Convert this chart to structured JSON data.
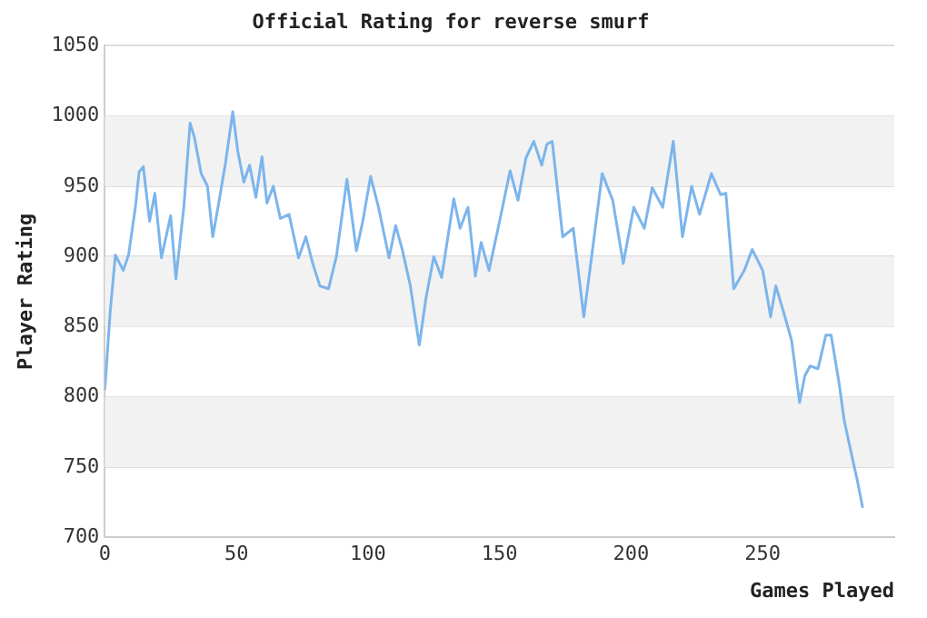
{
  "chart_data": {
    "type": "line",
    "title": "Official Rating for reverse smurf",
    "xlabel": "Games Played",
    "ylabel": "Player Rating",
    "x": [
      0,
      2,
      4,
      7,
      9,
      11.6,
      13,
      14.6,
      17,
      19,
      21.5,
      25,
      27,
      30,
      32.4,
      34,
      36.6,
      39,
      41,
      43,
      45.8,
      48.6,
      50.5,
      52.8,
      55,
      57.4,
      59.7,
      61.6,
      64,
      66.7,
      70,
      73.6,
      76.4,
      79,
      81.7,
      85,
      88,
      92,
      95.6,
      98,
      101,
      104,
      108,
      110.5,
      113,
      116,
      119.5,
      122,
      125,
      128,
      132.6,
      135,
      138,
      140.8,
      143,
      146,
      150,
      154,
      157,
      160,
      163,
      166,
      168,
      170,
      174,
      178,
      182,
      185,
      189,
      193,
      197,
      201,
      205,
      208,
      212,
      216,
      219.5,
      223,
      226,
      230.5,
      234,
      236,
      239,
      243,
      246,
      250,
      253,
      255,
      258,
      261,
      264,
      266,
      268,
      271,
      274,
      276,
      279,
      281,
      284,
      286,
      288
    ],
    "series": [
      {
        "color": "#7cb5ec",
        "values": [
          805,
          860,
          901,
          890,
          901,
          935,
          960,
          964,
          925,
          945,
          899,
          929,
          884,
          935,
          995,
          985,
          959,
          950,
          914,
          935,
          966,
          1003,
          975,
          953,
          965,
          942,
          971,
          938,
          950,
          927,
          930,
          899,
          914,
          895,
          879,
          877,
          900,
          955,
          904,
          925,
          957,
          935,
          899,
          922,
          905,
          880,
          837,
          870,
          900,
          885,
          941,
          920,
          935,
          886,
          910,
          890,
          925,
          961,
          940,
          970,
          982,
          965,
          980,
          982,
          914,
          920,
          857,
          900,
          959,
          940,
          895,
          935,
          920,
          949,
          935,
          982,
          914,
          950,
          930,
          959,
          944,
          945,
          877,
          890,
          905,
          890,
          857,
          879,
          860,
          840,
          796,
          815,
          822,
          820,
          844,
          844,
          810,
          783,
          757,
          740,
          721
        ]
      }
    ],
    "xlim": [
      0,
      300
    ],
    "xticks": [
      0,
      50,
      100,
      150,
      200,
      250
    ],
    "ylim": [
      700,
      1050
    ],
    "yticks": [
      700,
      750,
      800,
      850,
      900,
      950,
      1000,
      1050
    ],
    "grid": "y",
    "marker": "none",
    "line_style": "solid"
  }
}
